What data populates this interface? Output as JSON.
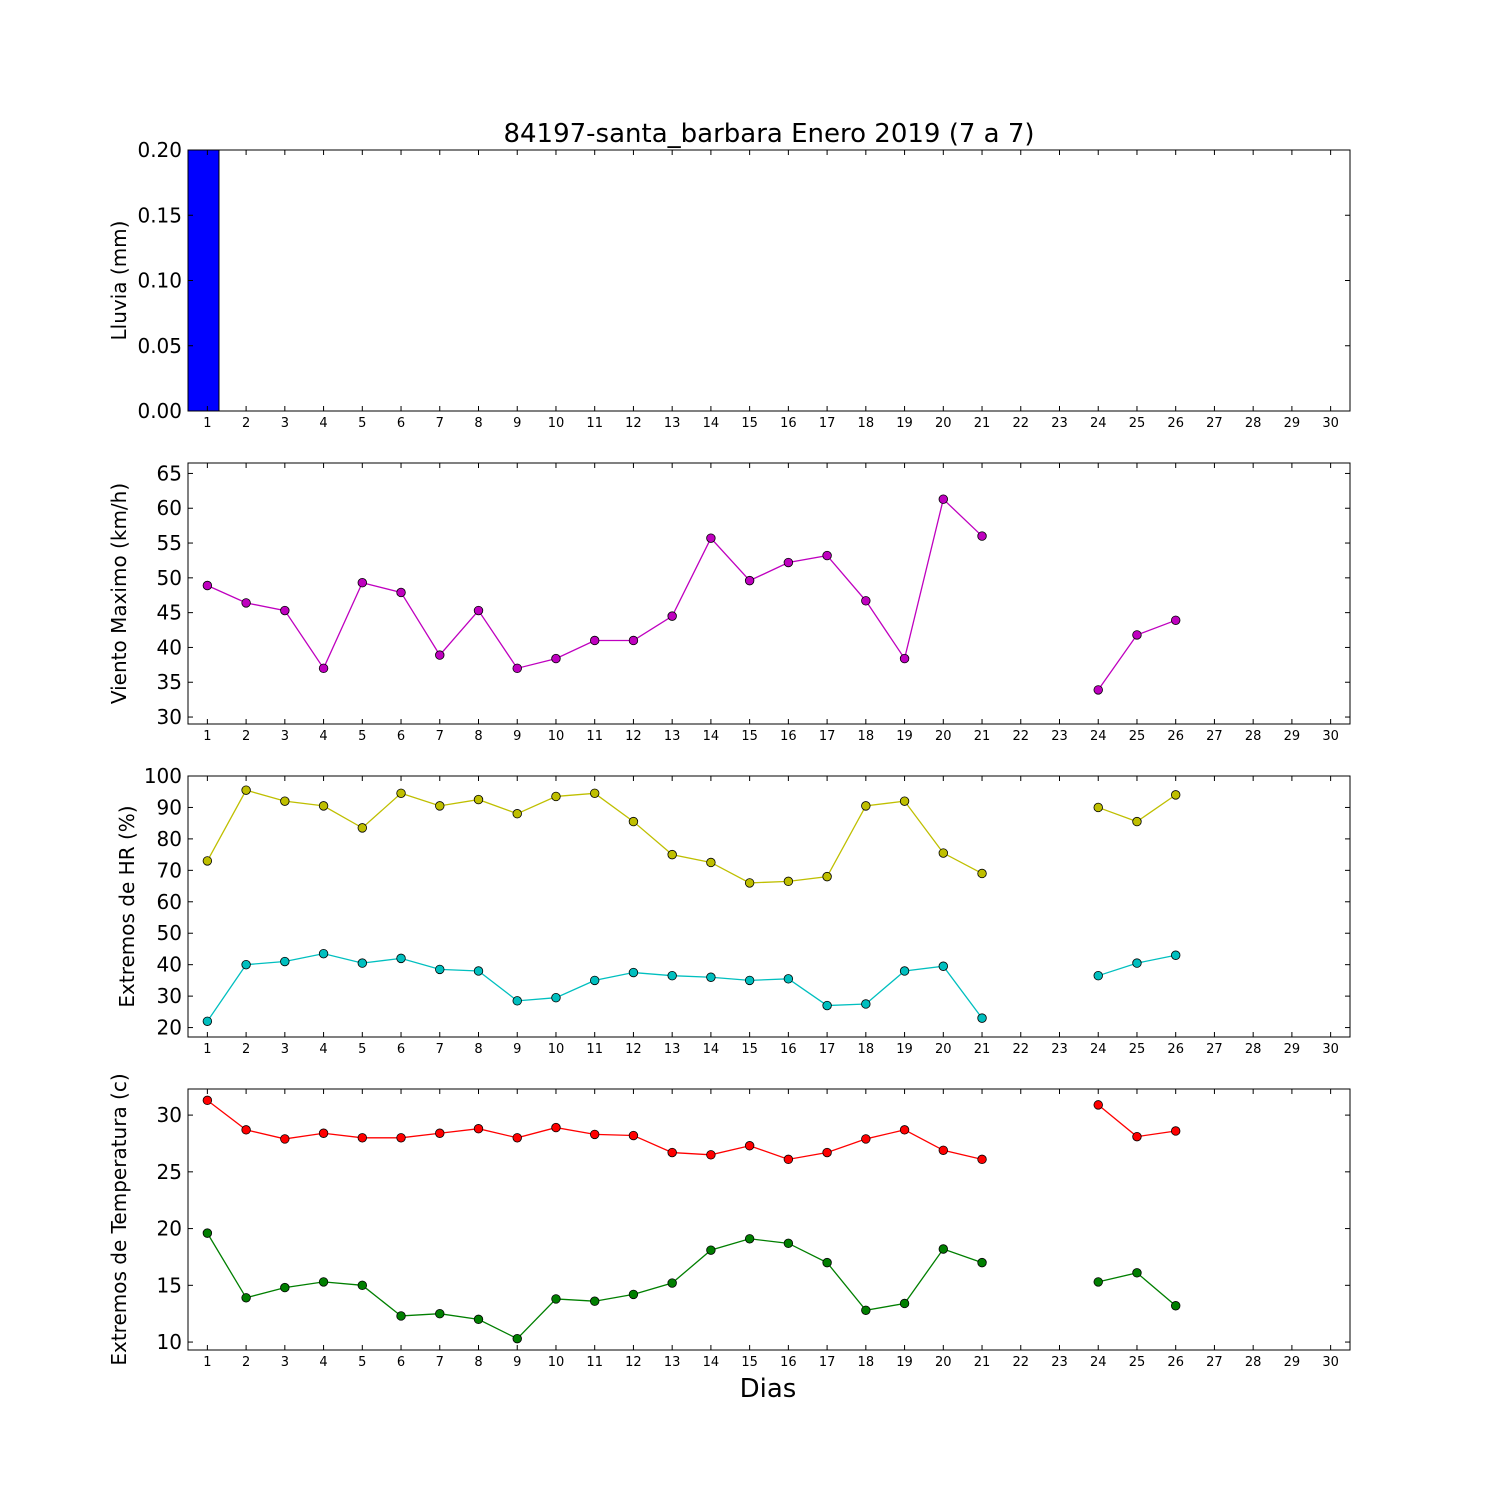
{
  "figure": {
    "title": "84197-santa_barbara Enero 2019  (7 a 7)",
    "xlabel": "Dias"
  },
  "chart_data": [
    {
      "type": "bar",
      "ylabel": "Lluvia (mm)",
      "xlim": [
        0.5,
        30.5
      ],
      "ylim": [
        0,
        0.2
      ],
      "xticks": [
        1,
        2,
        3,
        4,
        5,
        6,
        7,
        8,
        9,
        10,
        11,
        12,
        13,
        14,
        15,
        16,
        17,
        18,
        19,
        20,
        21,
        22,
        23,
        24,
        25,
        26,
        27,
        28,
        29,
        30
      ],
      "yticks": [
        0.0,
        0.05,
        0.1,
        0.15,
        0.2
      ],
      "ytick_labels": [
        "0.00",
        "0.05",
        "0.10",
        "0.15",
        "0.20"
      ],
      "grid": false,
      "series": [
        {
          "color": "#0000ff",
          "x": [
            1,
            2,
            3,
            4,
            5,
            6,
            7,
            8,
            9,
            10,
            11,
            12,
            13,
            14,
            15,
            16,
            17,
            18,
            19,
            20,
            21,
            24,
            25,
            26
          ],
          "values": [
            0.2,
            0,
            0,
            0,
            0,
            0,
            0,
            0,
            0,
            0,
            0,
            0,
            0,
            0,
            0,
            0,
            0,
            0,
            0,
            0,
            0,
            0,
            0,
            0
          ]
        }
      ]
    },
    {
      "type": "line",
      "ylabel": "Viento Maximo (km/h)",
      "xlim": [
        0.5,
        30.5
      ],
      "ylim": [
        29,
        66.5
      ],
      "xticks": [
        1,
        2,
        3,
        4,
        5,
        6,
        7,
        8,
        9,
        10,
        11,
        12,
        13,
        14,
        15,
        16,
        17,
        18,
        19,
        20,
        21,
        22,
        23,
        24,
        25,
        26,
        27,
        28,
        29,
        30
      ],
      "yticks": [
        30,
        35,
        40,
        45,
        50,
        55,
        60,
        65
      ],
      "ytick_labels": [
        "30",
        "35",
        "40",
        "45",
        "50",
        "55",
        "60",
        "65"
      ],
      "grid": false,
      "series": [
        {
          "color": "#bf00bf",
          "x": [
            1,
            2,
            3,
            4,
            5,
            6,
            7,
            8,
            9,
            10,
            11,
            12,
            13,
            14,
            15,
            16,
            17,
            18,
            19,
            20,
            21,
            22,
            23,
            24,
            25,
            26
          ],
          "values": [
            48.9,
            46.4,
            45.3,
            37.0,
            49.3,
            47.9,
            38.9,
            45.3,
            37.0,
            38.4,
            41.0,
            41.0,
            44.5,
            55.7,
            49.6,
            52.2,
            53.2,
            46.7,
            38.4,
            61.3,
            56.0,
            null,
            null,
            33.9,
            41.8,
            43.9
          ]
        }
      ]
    },
    {
      "type": "line",
      "ylabel": "Extremos de HR (%)",
      "xlim": [
        0.5,
        30.5
      ],
      "ylim": [
        17,
        100
      ],
      "xticks": [
        1,
        2,
        3,
        4,
        5,
        6,
        7,
        8,
        9,
        10,
        11,
        12,
        13,
        14,
        15,
        16,
        17,
        18,
        19,
        20,
        21,
        22,
        23,
        24,
        25,
        26,
        27,
        28,
        29,
        30
      ],
      "yticks": [
        20,
        30,
        40,
        50,
        60,
        70,
        80,
        90,
        100
      ],
      "ytick_labels": [
        "20",
        "30",
        "40",
        "50",
        "60",
        "70",
        "80",
        "90",
        "100"
      ],
      "grid": false,
      "series": [
        {
          "color": "#bfbf00",
          "x": [
            1,
            2,
            3,
            4,
            5,
            6,
            7,
            8,
            9,
            10,
            11,
            12,
            13,
            14,
            15,
            16,
            17,
            18,
            19,
            20,
            21,
            22,
            23,
            24,
            25,
            26
          ],
          "values": [
            73,
            95.5,
            92,
            90.5,
            83.5,
            94.5,
            90.5,
            92.5,
            88,
            93.5,
            94.5,
            85.5,
            75,
            72.5,
            66,
            66.5,
            68,
            90.5,
            92,
            75.5,
            69,
            null,
            null,
            90,
            85.5,
            94
          ]
        },
        {
          "color": "#00bfbf",
          "x": [
            1,
            2,
            3,
            4,
            5,
            6,
            7,
            8,
            9,
            10,
            11,
            12,
            13,
            14,
            15,
            16,
            17,
            18,
            19,
            20,
            21,
            22,
            23,
            24,
            25,
            26
          ],
          "values": [
            22,
            40,
            41,
            43.5,
            40.5,
            42,
            38.5,
            38,
            28.5,
            29.5,
            35,
            37.5,
            36.5,
            36,
            35,
            35.5,
            27,
            27.5,
            38,
            39.5,
            23,
            null,
            null,
            36.5,
            40.5,
            43
          ]
        }
      ]
    },
    {
      "type": "line",
      "ylabel": "Extremos de Temperatura (c)",
      "xlim": [
        0.5,
        30.5
      ],
      "ylim": [
        9.3,
        32.3
      ],
      "xticks": [
        1,
        2,
        3,
        4,
        5,
        6,
        7,
        8,
        9,
        10,
        11,
        12,
        13,
        14,
        15,
        16,
        17,
        18,
        19,
        20,
        21,
        22,
        23,
        24,
        25,
        26,
        27,
        28,
        29,
        30
      ],
      "yticks": [
        10,
        15,
        20,
        25,
        30
      ],
      "ytick_labels": [
        "10",
        "15",
        "20",
        "25",
        "30"
      ],
      "grid": false,
      "series": [
        {
          "color": "#ff0000",
          "x": [
            1,
            2,
            3,
            4,
            5,
            6,
            7,
            8,
            9,
            10,
            11,
            12,
            13,
            14,
            15,
            16,
            17,
            18,
            19,
            20,
            21,
            22,
            23,
            24,
            25,
            26
          ],
          "values": [
            31.3,
            28.7,
            27.9,
            28.4,
            28.0,
            28.0,
            28.4,
            28.8,
            28.0,
            28.9,
            28.3,
            28.2,
            26.7,
            26.5,
            27.3,
            26.1,
            26.7,
            27.9,
            28.7,
            26.9,
            26.1,
            null,
            null,
            30.9,
            28.1,
            28.6
          ]
        },
        {
          "color": "#007f00",
          "x": [
            1,
            2,
            3,
            4,
            5,
            6,
            7,
            8,
            9,
            10,
            11,
            12,
            13,
            14,
            15,
            16,
            17,
            18,
            19,
            20,
            21,
            22,
            23,
            24,
            25,
            26
          ],
          "values": [
            19.6,
            13.9,
            14.8,
            15.3,
            15.0,
            12.3,
            12.5,
            12.0,
            10.3,
            13.8,
            13.6,
            14.2,
            15.2,
            18.1,
            19.1,
            18.7,
            17.0,
            12.8,
            13.4,
            18.2,
            17.0,
            null,
            null,
            15.3,
            16.1,
            13.2
          ]
        }
      ]
    }
  ]
}
